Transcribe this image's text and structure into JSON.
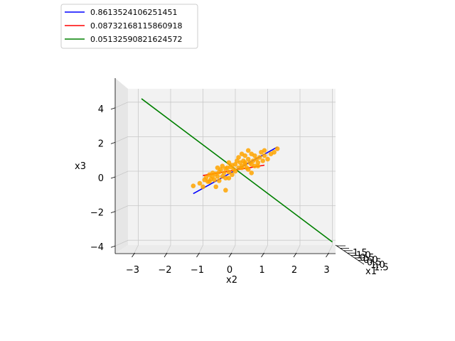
{
  "chart_data": {
    "type": "scatter",
    "projection": "3d",
    "view": "looking along x1 axis (x2 horizontal, x3 vertical)",
    "xlabel": "x1",
    "ylabel": "x2",
    "zlabel": "x3",
    "x2_ticks": [
      "−3",
      "−2",
      "−1",
      "0",
      "1",
      "2",
      "3"
    ],
    "x3_ticks": [
      "−4",
      "−2",
      "0",
      "2",
      "4"
    ],
    "x1_ticks": [
      "1.5",
      "1.0",
      "0.5",
      "0.0",
      "0.5",
      "1.0",
      "1.5"
    ],
    "x2_lim": [
      -3.7,
      3.2
    ],
    "x3_lim": [
      -4.6,
      5.2
    ],
    "grid": true,
    "legend_position": "top-left",
    "series": [
      {
        "name": "0.8613524106251451",
        "kind": "line",
        "color": "#0000ff",
        "x2": [
          -1.3,
          1.3
        ],
        "x3": [
          -1.3,
          1.4
        ]
      },
      {
        "name": "0.08732168115860918",
        "kind": "line",
        "color": "#ff0000",
        "x2": [
          -1.0,
          0.9
        ],
        "x3": [
          -0.25,
          0.35
        ]
      },
      {
        "name": "0.05132590821624572",
        "kind": "line",
        "color": "#008000",
        "x2": [
          -2.9,
          3.0
        ],
        "x3": [
          4.2,
          -4.1
        ]
      }
    ],
    "points": {
      "color": "#ffa500",
      "x2": [
        -1.3,
        -1.1,
        -1.0,
        -0.95,
        -0.9,
        -0.85,
        -0.8,
        -0.75,
        -0.7,
        -0.7,
        -0.65,
        -0.6,
        -0.55,
        -0.55,
        -0.5,
        -0.5,
        -0.45,
        -0.4,
        -0.4,
        -0.35,
        -0.3,
        -0.3,
        -0.25,
        -0.2,
        -0.2,
        -0.15,
        -0.1,
        -0.1,
        -0.05,
        0.0,
        0.05,
        0.1,
        0.1,
        0.15,
        0.2,
        0.2,
        0.25,
        0.3,
        0.3,
        0.35,
        0.4,
        0.4,
        0.45,
        0.5,
        0.5,
        0.55,
        0.6,
        0.6,
        0.65,
        0.7,
        0.75,
        0.8,
        0.85,
        0.9,
        1.0,
        1.1,
        1.2,
        1.3,
        0.4,
        0.5,
        -0.3,
        -0.6,
        0.0,
        0.2,
        0.7,
        -0.8,
        0.9,
        -0.2,
        0.3
      ],
      "x3": [
        -0.85,
        -0.7,
        -0.9,
        -0.5,
        -0.35,
        -0.6,
        -0.2,
        -0.45,
        -0.3,
        -0.1,
        -0.5,
        -0.15,
        -0.3,
        0.2,
        -0.05,
        -0.55,
        0.1,
        -0.3,
        0.3,
        -0.1,
        0.15,
        -0.4,
        0.2,
        -0.05,
        0.5,
        0.25,
        0.35,
        -0.2,
        0.1,
        0.4,
        0.6,
        0.2,
        0.8,
        0.5,
        0.3,
        1.0,
        0.6,
        0.4,
        0.9,
        0.2,
        0.7,
        1.2,
        0.5,
        0.4,
        1.0,
        0.6,
        0.3,
        0.9,
        0.7,
        0.5,
        0.8,
        1.1,
        0.6,
        0.9,
        0.7,
        1.0,
        1.1,
        1.3,
        0.1,
        -0.1,
        -1.1,
        -0.9,
        0.0,
        0.2,
        0.3,
        -0.6,
        1.2,
        -0.4,
        0.5
      ]
    }
  }
}
